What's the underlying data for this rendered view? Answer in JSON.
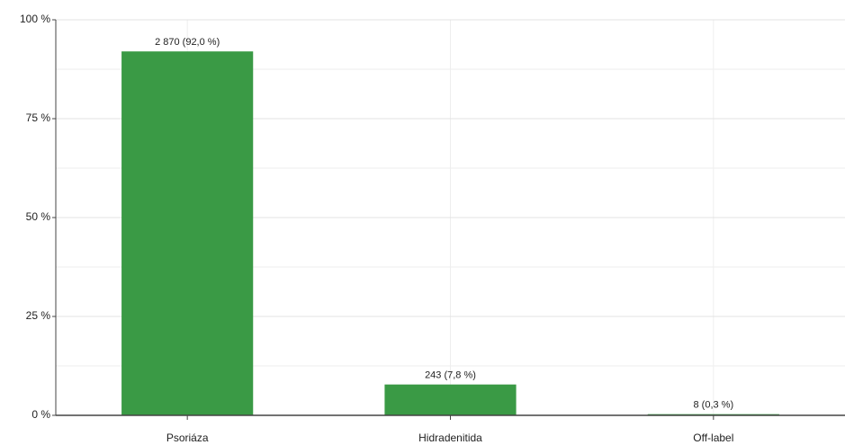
{
  "chart_data": {
    "type": "bar",
    "categories": [
      "Psoriáza",
      "Hidradenitida",
      "Off-label"
    ],
    "values": [
      92.0,
      7.8,
      0.3
    ],
    "value_labels": [
      "2 870 (92,0 %)",
      "243 (7,8 %)",
      "8 (0,3 %)"
    ],
    "color": "#3a9a45",
    "ylim": [
      0,
      100
    ],
    "yticks": [
      {
        "value": 0,
        "label": "0 %"
      },
      {
        "value": 25,
        "label": "25 %"
      },
      {
        "value": 50,
        "label": "50 %"
      },
      {
        "value": 75,
        "label": "75 %"
      },
      {
        "value": 100,
        "label": "100 %"
      }
    ],
    "minor_yticks": [
      12.5,
      37.5,
      62.5,
      87.5
    ],
    "grid": true
  }
}
